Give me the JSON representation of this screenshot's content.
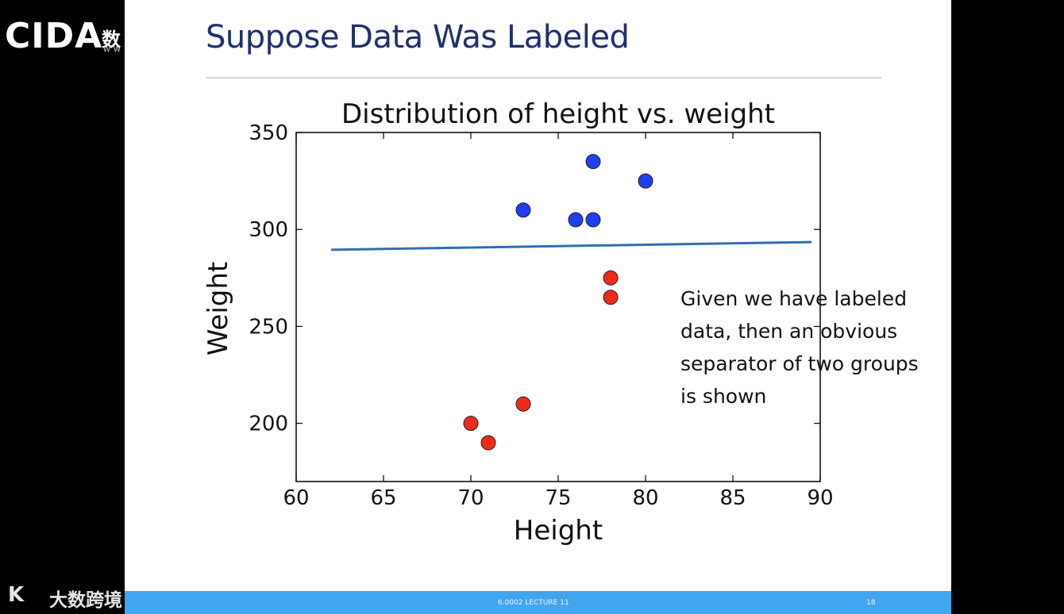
{
  "brand": {
    "logo": "CIDA",
    "cn": "数",
    "www": "WW"
  },
  "slide": {
    "title": "Suppose Data Was Labeled",
    "callout": "Given we have labeled data, then an obvious separator of two groups is shown",
    "footer_text": "6.0002 LECTURE 11",
    "page_number": "18"
  },
  "watermark": {
    "logo": "K",
    "text": "大数跨境"
  },
  "colors": {
    "blue_points": "#1f3ff0",
    "red_points": "#f02a1a",
    "separator": "#2f6fb0"
  },
  "chart_data": {
    "type": "scatter",
    "title": "Distribution of height vs. weight",
    "xlabel": "Height",
    "ylabel": "Weight",
    "xlim": [
      60,
      90
    ],
    "ylim": [
      170,
      350
    ],
    "xticks": [
      60,
      65,
      70,
      75,
      80,
      85,
      90
    ],
    "yticks": [
      200,
      250,
      300,
      350
    ],
    "grid": false,
    "series": [
      {
        "color": "#1f3ff0",
        "points": [
          [
            73,
            310
          ],
          [
            76,
            305
          ],
          [
            77,
            305
          ],
          [
            77,
            335
          ],
          [
            80,
            325
          ]
        ]
      },
      {
        "color": "#f02a1a",
        "points": [
          [
            70,
            200
          ],
          [
            71,
            190
          ],
          [
            73,
            210
          ],
          [
            78,
            275
          ],
          [
            78,
            265
          ]
        ]
      }
    ],
    "lines": [
      {
        "x": [
          62,
          89.5
        ],
        "y": [
          289.5,
          293.5
        ],
        "color": "#2f6fb0"
      }
    ]
  }
}
